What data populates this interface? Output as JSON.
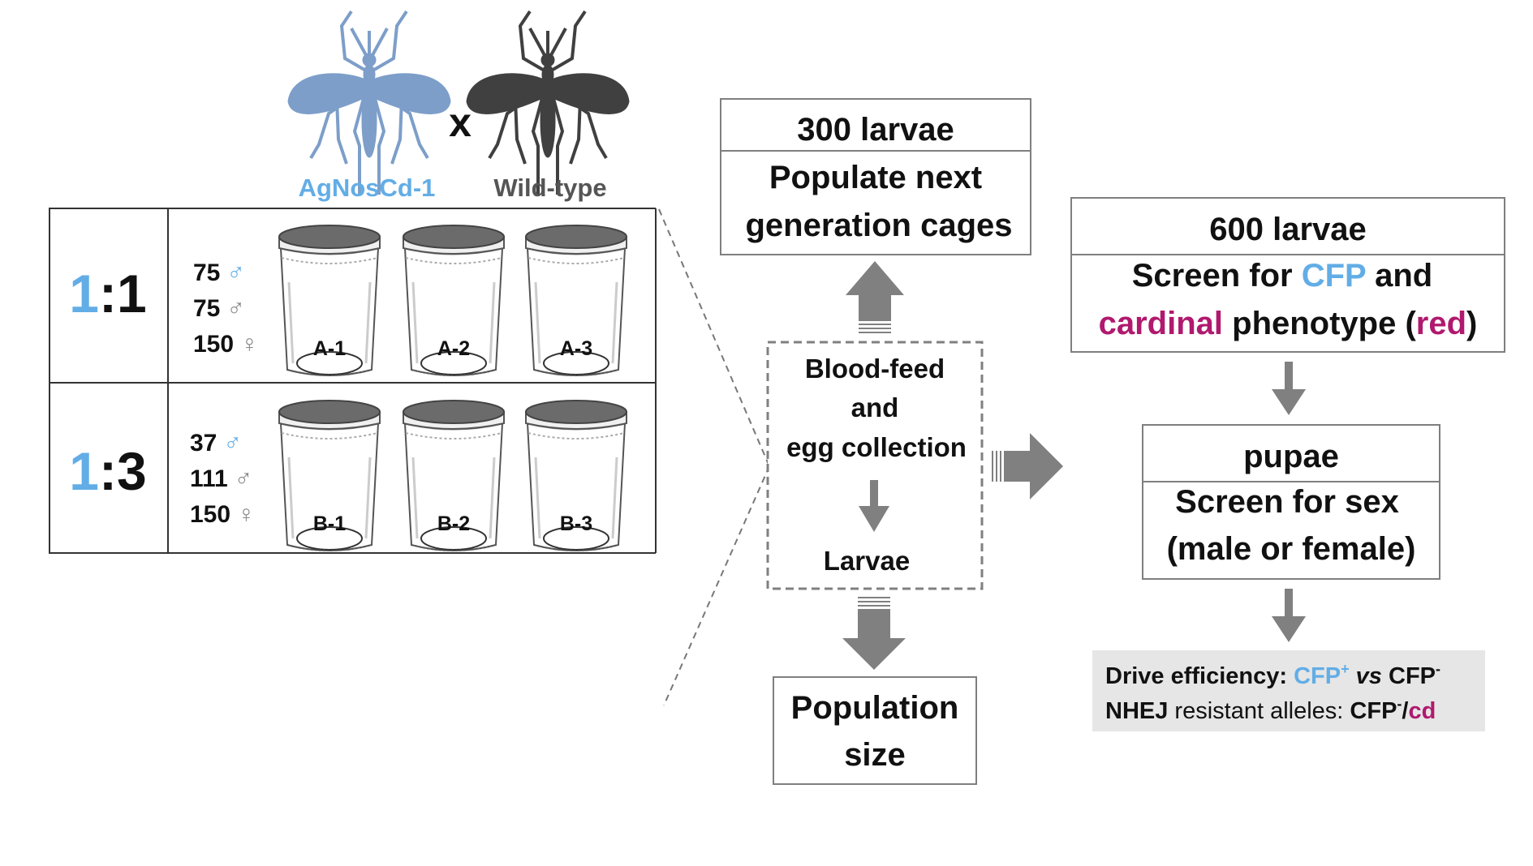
{
  "colors": {
    "blue": "#62ade6",
    "magenta": "#b0196e",
    "dark": "#111111",
    "grey_text": "#555555",
    "arrow": "#808080",
    "box_stroke": "#7f7f7f",
    "mosquito_blue": "#7d9ec9",
    "mosquito_dark": "#404040",
    "lid": "#6b6b6b",
    "result_bg": "#e6e6e6"
  },
  "cross": {
    "transgenic_label": "AgNosCd-1",
    "cross_symbol": "x",
    "wildtype_label": "Wild-type"
  },
  "cages_table": {
    "rows": [
      {
        "ratio_a": "1",
        "ratio_sep": ":",
        "ratio_b": "1",
        "counts": [
          {
            "count": "75",
            "symbol": "♂",
            "color": "blue"
          },
          {
            "count": "75",
            "symbol": "♂",
            "color": "grey"
          },
          {
            "count": "150",
            "symbol": "♀",
            "color": "grey"
          }
        ],
        "cages": [
          "A-1",
          "A-2",
          "A-3"
        ]
      },
      {
        "ratio_a": "1",
        "ratio_sep": ":",
        "ratio_b": "3",
        "counts": [
          {
            "count": "37",
            "symbol": "♂",
            "color": "blue"
          },
          {
            "count": "111",
            "symbol": "♂",
            "color": "grey"
          },
          {
            "count": "150",
            "symbol": "♀",
            "color": "grey"
          }
        ],
        "cages": [
          "B-1",
          "B-2",
          "B-3"
        ]
      }
    ]
  },
  "next_gen_box": {
    "title": "300 larvae",
    "line1": "Populate next",
    "line2": "generation cages"
  },
  "center_box": {
    "line1": "Blood-feed",
    "line2": "and",
    "line3": "egg collection",
    "bottom": "Larvae"
  },
  "population_box": {
    "line1": "Population",
    "line2": "size"
  },
  "screen_box": {
    "title": "600 larvae",
    "l1_a": "Screen for ",
    "l1_b": "CFP",
    "l1_c": " and",
    "l2_a": "cardinal",
    "l2_b": " phenotype (",
    "l2_c": "red",
    "l2_d": ")"
  },
  "pupae_box": {
    "title": "pupae",
    "line1": "Screen for sex",
    "line2": "(male or female)"
  },
  "result_box": {
    "r1_label": "Drive efficiency: ",
    "r1_cfp": "CFP",
    "r1_plus": "+",
    "r1_vs": " vs ",
    "r1_cfp2": "CFP",
    "r1_minus": "-",
    "r2_label": "NHEJ",
    "r2_text": " resistant alleles: ",
    "r2_cfp": "CFP",
    "r2_minus": "-",
    "r2_slash": "/",
    "r2_cd": "cd"
  }
}
